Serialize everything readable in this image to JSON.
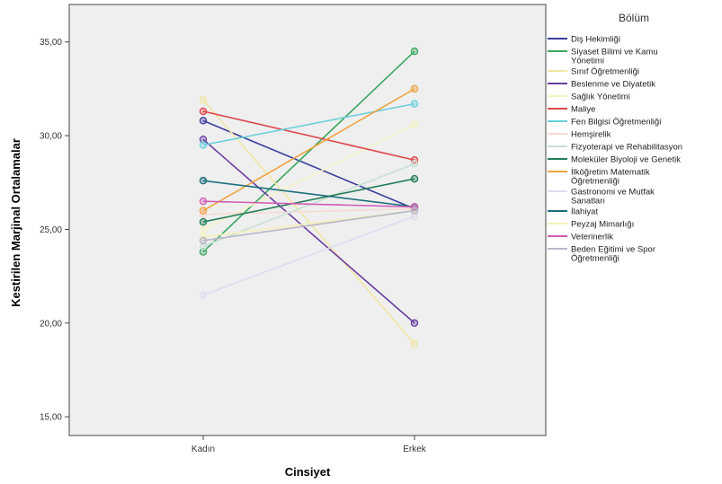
{
  "chart_data": {
    "type": "line",
    "title": "",
    "xlabel": "Cinsiyet",
    "ylabel": "Kestirilen Marjinal Ortalamalar",
    "categories": [
      "Kadın",
      "Erkek"
    ],
    "ylim": [
      14,
      37
    ],
    "yticks": [
      15,
      20,
      25,
      30,
      35
    ],
    "ytick_labels": [
      "15,00",
      "20,00",
      "25,00",
      "30,00",
      "35,00"
    ],
    "grid": false,
    "legend_title": "Bölüm",
    "legend_position": "right",
    "series": [
      {
        "name": "Diş Hekimliği",
        "color": "#3b3f9e",
        "values": [
          30.8,
          26.1
        ]
      },
      {
        "name": "Siyaset Bilimi ve Kamu Yönetimi",
        "color": "#3aa860",
        "values": [
          23.8,
          34.5
        ]
      },
      {
        "name": "Sınıf Öğretmenliği",
        "color": "#f1e6a4",
        "values": [
          31.9,
          18.9
        ]
      },
      {
        "name": "Beslenme ve Diyatetik",
        "color": "#6a3ea1",
        "values": [
          29.8,
          20.0
        ]
      },
      {
        "name": "Sağlık Yönetimi",
        "color": "#f4f3c5",
        "values": [
          25.0,
          30.6
        ]
      },
      {
        "name": "Maliye",
        "color": "#e0474c",
        "values": [
          31.3,
          28.7
        ]
      },
      {
        "name": "Fen Bilgisi Öğretmenliği",
        "color": "#6ad0da",
        "values": [
          29.5,
          31.7
        ]
      },
      {
        "name": "Hemşirelik",
        "color": "#f7d9d4",
        "values": [
          25.8,
          26.1
        ]
      },
      {
        "name": "Fizyoterapi ve Rehabilitasyon",
        "color": "#c9e0d4",
        "values": [
          24.1,
          28.5
        ]
      },
      {
        "name": "Moleküler Biyoloji ve Genetik",
        "color": "#237e58",
        "values": [
          25.4,
          27.7
        ]
      },
      {
        "name": "İlköğretim Matematik Öğretmenliği",
        "color": "#f0a440",
        "values": [
          26.0,
          32.5
        ]
      },
      {
        "name": "Gastronomi ve Mutfak Sanatları",
        "color": "#dcdcf2",
        "values": [
          21.5,
          25.7
        ]
      },
      {
        "name": "İlahiyat",
        "color": "#1b6e7e",
        "values": [
          27.6,
          26.2
        ]
      },
      {
        "name": "Peyzaj Mimarlığı",
        "color": "#f5f0b8",
        "values": [
          24.6,
          26.0
        ]
      },
      {
        "name": "Veterinerlik",
        "color": "#d25bb4",
        "values": [
          26.5,
          26.2
        ]
      },
      {
        "name": "Beden Eğitimi ve Spor Öğretmenliği",
        "color": "#b7b7c7",
        "values": [
          24.4,
          26.0
        ]
      }
    ],
    "legend_labels": [
      [
        "Diş Hekimliği"
      ],
      [
        "Siyaset Bilimi ve Kamu",
        "Yönetimi"
      ],
      [
        "Sınıf Öğretmenliği"
      ],
      [
        "Beslenme ve Diyatetik"
      ],
      [
        "Sağlık Yönetimi"
      ],
      [
        "Maliye"
      ],
      [
        "Fen Bilgisi Öğretmenliği"
      ],
      [
        "Hemşirelik"
      ],
      [
        "Fizyoterapi ve Rehabilitasyon"
      ],
      [
        "Moleküler Biyoloji ve Genetik"
      ],
      [
        "İlköğretim Matematik",
        "Öğretmenliği"
      ],
      [
        "Gastronomi ve Mutfak",
        "Sanatları"
      ],
      [
        "İlahiyat"
      ],
      [
        "Peyzaj Mimarlığı"
      ],
      [
        "Veterinerlik"
      ],
      [
        "Beden Eğitimi ve Spor",
        "Öğretmenliği"
      ]
    ]
  }
}
